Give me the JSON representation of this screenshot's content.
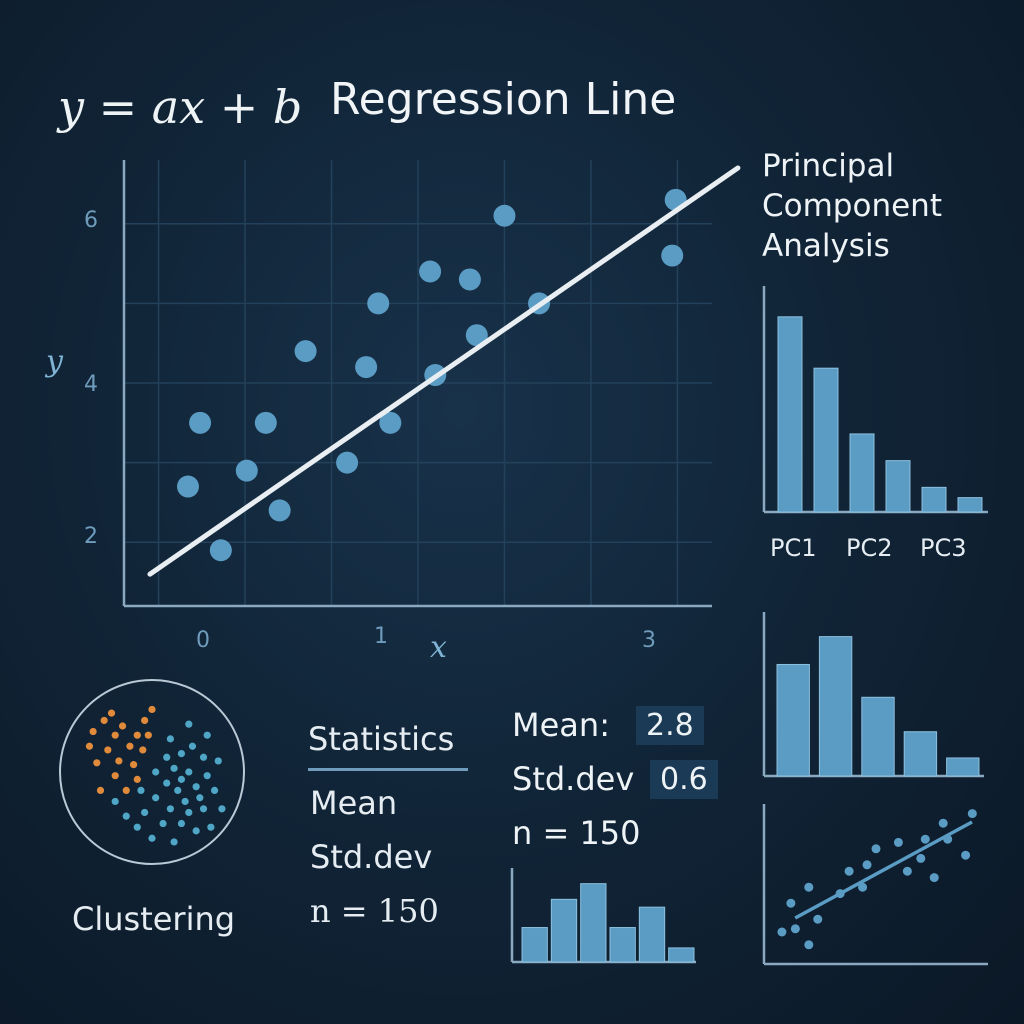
{
  "header": {
    "formula": "y = ax + b",
    "title": "Regression Line"
  },
  "pca": {
    "title": "Principal Component Analysis"
  },
  "stats": {
    "heading": "Statistics",
    "items": [
      "Mean",
      "Std.dev",
      "n = 150"
    ],
    "mean_key": "Mean:",
    "mean_value": "2.8",
    "std_key": "Std.dev",
    "std_value": "0.6",
    "n_text": "n = 150"
  },
  "clustering": {
    "label": "Clustering"
  },
  "colors": {
    "accent": "#5b9cc4",
    "line": "#e9eef2",
    "orange": "#e08a3c",
    "cyan": "#4fa6c6"
  },
  "chart_data": [
    {
      "type": "scatter",
      "title": "Regression Line",
      "xlabel": "x",
      "ylabel": "y",
      "xticks": [
        "0",
        "1",
        "3"
      ],
      "yticks": [
        "2",
        "4",
        "6"
      ],
      "xlim": [
        -0.2,
        3.2
      ],
      "ylim": [
        1.2,
        6.8
      ],
      "points": [
        [
          0.17,
          2.7
        ],
        [
          0.24,
          3.5
        ],
        [
          0.36,
          1.9
        ],
        [
          0.51,
          2.9
        ],
        [
          0.62,
          3.5
        ],
        [
          0.7,
          2.4
        ],
        [
          0.85,
          4.4
        ],
        [
          1.09,
          3.0
        ],
        [
          1.2,
          4.2
        ],
        [
          1.27,
          5.0
        ],
        [
          1.34,
          3.5
        ],
        [
          1.57,
          5.4
        ],
        [
          1.6,
          4.1
        ],
        [
          1.8,
          5.3
        ],
        [
          1.84,
          4.6
        ],
        [
          2.0,
          6.1
        ],
        [
          2.2,
          5.0
        ],
        [
          2.97,
          5.6
        ],
        [
          2.99,
          6.3
        ]
      ],
      "regression": {
        "x": [
          -0.05,
          3.35
        ],
        "y": [
          1.6,
          6.7
        ]
      }
    },
    {
      "type": "bar",
      "title": "Principal Component Analysis",
      "categories": [
        "PC1",
        "",
        "PC2",
        "",
        "PC3",
        ""
      ],
      "tick_labels": [
        "PC1",
        "PC2",
        "PC3"
      ],
      "values": [
        0.95,
        0.7,
        0.38,
        0.25,
        0.12,
        0.07
      ],
      "ylim": [
        0,
        1.1
      ]
    },
    {
      "type": "bar",
      "categories": [
        "",
        "",
        "",
        "",
        ""
      ],
      "values": [
        0.68,
        0.85,
        0.48,
        0.27,
        0.11
      ],
      "ylim": [
        0,
        1.0
      ]
    },
    {
      "type": "bar",
      "categories": [
        "",
        "",
        "",
        "",
        "",
        ""
      ],
      "values": [
        0.44,
        0.8,
        1.0,
        0.44,
        0.7,
        0.18
      ],
      "ylim": [
        0,
        1.2
      ]
    },
    {
      "type": "scatter",
      "points": [
        [
          0.08,
          0.2
        ],
        [
          0.14,
          0.22
        ],
        [
          0.12,
          0.38
        ],
        [
          0.2,
          0.12
        ],
        [
          0.24,
          0.28
        ],
        [
          0.2,
          0.48
        ],
        [
          0.34,
          0.44
        ],
        [
          0.38,
          0.58
        ],
        [
          0.44,
          0.48
        ],
        [
          0.46,
          0.62
        ],
        [
          0.5,
          0.72
        ],
        [
          0.6,
          0.76
        ],
        [
          0.64,
          0.58
        ],
        [
          0.7,
          0.66
        ],
        [
          0.72,
          0.78
        ],
        [
          0.76,
          0.54
        ],
        [
          0.82,
          0.78
        ],
        [
          0.8,
          0.88
        ],
        [
          0.9,
          0.68
        ],
        [
          0.93,
          0.94
        ]
      ],
      "regression": {
        "x": [
          0.05,
          1.05
        ],
        "y": [
          0.1,
          0.95
        ]
      }
    },
    {
      "type": "scatter",
      "title": "Clustering",
      "series": [
        {
          "name": "",
          "points": [
            [
              0.18,
              0.28
            ],
            [
              0.24,
              0.22
            ],
            [
              0.3,
              0.3
            ],
            [
              0.26,
              0.38
            ],
            [
              0.2,
              0.45
            ],
            [
              0.32,
              0.44
            ],
            [
              0.38,
              0.36
            ],
            [
              0.34,
              0.25
            ],
            [
              0.42,
              0.3
            ],
            [
              0.4,
              0.46
            ],
            [
              0.3,
              0.52
            ],
            [
              0.22,
              0.6
            ],
            [
              0.36,
              0.6
            ],
            [
              0.45,
              0.38
            ],
            [
              0.46,
              0.22
            ],
            [
              0.28,
              0.18
            ],
            [
              0.16,
              0.36
            ],
            [
              0.5,
              0.16
            ],
            [
              0.42,
              0.54
            ],
            [
              0.48,
              0.3
            ]
          ]
        },
        {
          "name": "",
          "points": [
            [
              0.6,
              0.32
            ],
            [
              0.66,
              0.4
            ],
            [
              0.72,
              0.36
            ],
            [
              0.78,
              0.42
            ],
            [
              0.62,
              0.48
            ],
            [
              0.7,
              0.5
            ],
            [
              0.8,
              0.52
            ],
            [
              0.74,
              0.58
            ],
            [
              0.64,
              0.6
            ],
            [
              0.58,
              0.56
            ],
            [
              0.84,
              0.6
            ],
            [
              0.68,
              0.66
            ],
            [
              0.78,
              0.7
            ],
            [
              0.6,
              0.7
            ],
            [
              0.52,
              0.64
            ],
            [
              0.46,
              0.72
            ],
            [
              0.56,
              0.78
            ],
            [
              0.66,
              0.78
            ],
            [
              0.74,
              0.82
            ],
            [
              0.5,
              0.86
            ],
            [
              0.62,
              0.88
            ],
            [
              0.42,
              0.8
            ],
            [
              0.86,
              0.44
            ],
            [
              0.7,
              0.24
            ],
            [
              0.8,
              0.3
            ],
            [
              0.88,
              0.7
            ],
            [
              0.58,
              0.42
            ],
            [
              0.52,
              0.5
            ],
            [
              0.76,
              0.64
            ],
            [
              0.36,
              0.74
            ],
            [
              0.3,
              0.66
            ],
            [
              0.44,
              0.6
            ],
            [
              0.7,
              0.72
            ],
            [
              0.82,
              0.8
            ],
            [
              0.66,
              0.54
            ]
          ]
        }
      ]
    }
  ]
}
